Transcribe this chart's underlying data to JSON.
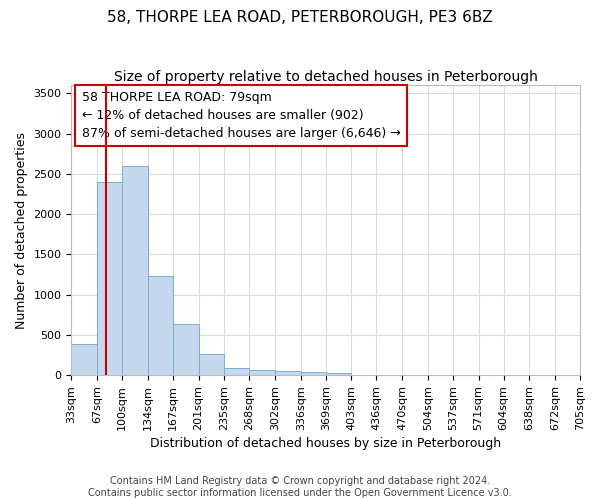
{
  "title": "58, THORPE LEA ROAD, PETERBOROUGH, PE3 6BZ",
  "subtitle": "Size of property relative to detached houses in Peterborough",
  "xlabel": "Distribution of detached houses by size in Peterborough",
  "ylabel": "Number of detached properties",
  "bin_edges": [
    33,
    67,
    100,
    134,
    167,
    201,
    235,
    268,
    302,
    336,
    369,
    403,
    436,
    470,
    504,
    537,
    571,
    604,
    638,
    672,
    705
  ],
  "bar_heights": [
    390,
    2400,
    2600,
    1230,
    640,
    260,
    95,
    60,
    55,
    40,
    30,
    0,
    0,
    0,
    0,
    0,
    0,
    0,
    0,
    0
  ],
  "bar_color": "#c5d8ee",
  "bar_edge_color": "#7aadd4",
  "property_size": 79,
  "red_line_color": "#cc0000",
  "annotation_line1": "58 THORPE LEA ROAD: 79sqm",
  "annotation_line2": "← 12% of detached houses are smaller (902)",
  "annotation_line3": "87% of semi-detached houses are larger (6,646) →",
  "annotation_box_color": "#ffffff",
  "annotation_box_edge_color": "#cc0000",
  "ylim": [
    0,
    3600
  ],
  "yticks": [
    0,
    500,
    1000,
    1500,
    2000,
    2500,
    3000,
    3500
  ],
  "footer_text": "Contains HM Land Registry data © Crown copyright and database right 2024.\nContains public sector information licensed under the Open Government Licence v3.0.",
  "background_color": "#ffffff",
  "plot_background_color": "#ffffff",
  "grid_color": "#d0dce8",
  "title_fontsize": 11,
  "subtitle_fontsize": 10,
  "axis_label_fontsize": 9,
  "tick_fontsize": 8,
  "annotation_fontsize": 9,
  "footer_fontsize": 7
}
